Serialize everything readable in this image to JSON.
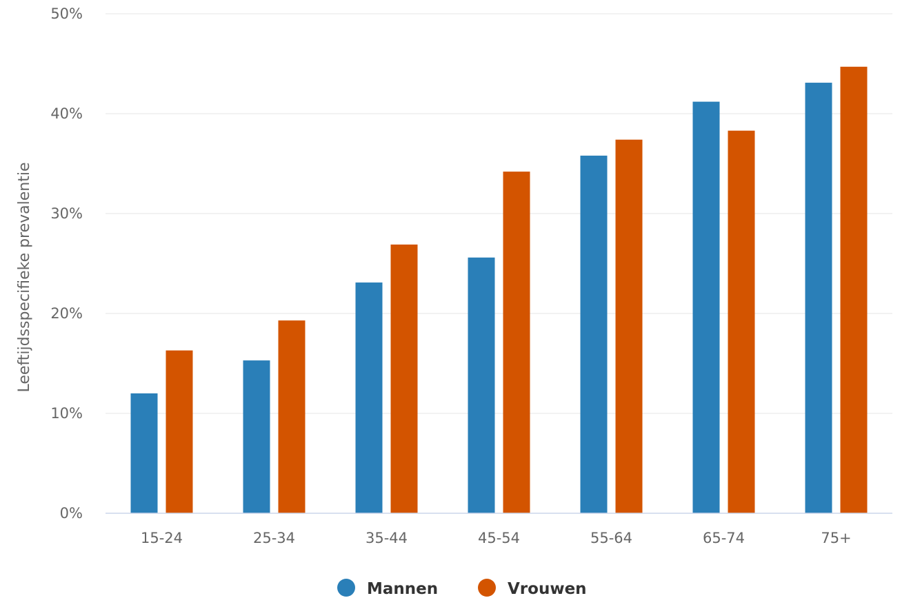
{
  "chart_data": {
    "type": "bar",
    "categories": [
      "15-24",
      "25-34",
      "35-44",
      "45-54",
      "55-64",
      "65-74",
      "75+"
    ],
    "series": [
      {
        "name": "Mannen",
        "color": "#2a7fb8",
        "values": [
          12.0,
          15.3,
          23.1,
          25.6,
          35.8,
          41.2,
          43.1
        ]
      },
      {
        "name": "Vrouwen",
        "color": "#d35400",
        "values": [
          16.3,
          19.3,
          26.9,
          34.2,
          37.4,
          38.3,
          44.7
        ]
      }
    ],
    "title": "",
    "xlabel": "",
    "ylabel": "Leeftijdsspecifieke prevalentie",
    "ylim": [
      0,
      50
    ],
    "yticks": [
      "0%",
      "10%",
      "20%",
      "30%",
      "40%",
      "50%"
    ],
    "grid": true,
    "legend_position": "bottom-center"
  }
}
